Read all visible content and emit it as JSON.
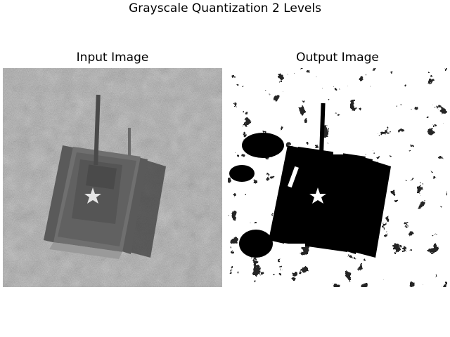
{
  "figure": {
    "title": "Grayscale Quantization 2 Levels"
  },
  "panels": [
    {
      "title": "Input Image",
      "content": "grayscale aerial photo of a tank on grassy terrain"
    },
    {
      "title": "Output Image",
      "content": "binary (2-level) quantized version of the tank photo"
    }
  ]
}
